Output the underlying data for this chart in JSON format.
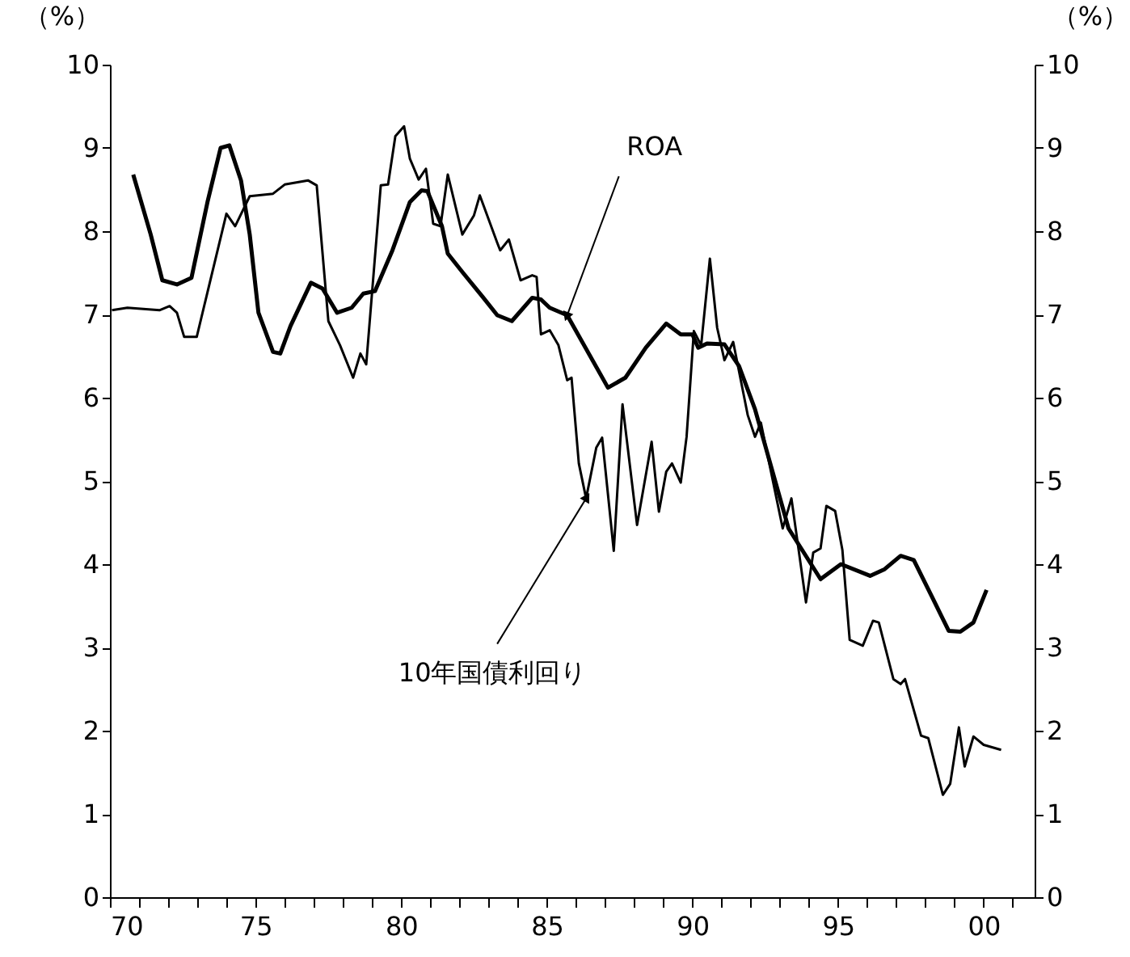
{
  "chart_data": {
    "type": "line",
    "xlim": [
      1970,
      2001.75
    ],
    "xticks": [
      {
        "value": 1970,
        "label": "70"
      },
      {
        "value": 1971,
        "label": null
      },
      {
        "value": 1972,
        "label": null
      },
      {
        "value": 1973,
        "label": null
      },
      {
        "value": 1974,
        "label": null
      },
      {
        "value": 1975,
        "label": "75"
      },
      {
        "value": 1976,
        "label": null
      },
      {
        "value": 1977,
        "label": null
      },
      {
        "value": 1978,
        "label": null
      },
      {
        "value": 1979,
        "label": null
      },
      {
        "value": 1980,
        "label": "80"
      },
      {
        "value": 1981,
        "label": null
      },
      {
        "value": 1982,
        "label": null
      },
      {
        "value": 1983,
        "label": null
      },
      {
        "value": 1984,
        "label": null
      },
      {
        "value": 1985,
        "label": "85"
      },
      {
        "value": 1986,
        "label": null
      },
      {
        "value": 1987,
        "label": null
      },
      {
        "value": 1988,
        "label": null
      },
      {
        "value": 1989,
        "label": null
      },
      {
        "value": 1990,
        "label": "90"
      },
      {
        "value": 1991,
        "label": null
      },
      {
        "value": 1992,
        "label": null
      },
      {
        "value": 1993,
        "label": null
      },
      {
        "value": 1994,
        "label": null
      },
      {
        "value": 1995,
        "label": "95"
      },
      {
        "value": 1996,
        "label": null
      },
      {
        "value": 1997,
        "label": null
      },
      {
        "value": 1998,
        "label": null
      },
      {
        "value": 1999,
        "label": null
      },
      {
        "value": 2000,
        "label": "00"
      },
      {
        "value": 2001,
        "label": null
      }
    ],
    "ylim": [
      0,
      10
    ],
    "yticks": [
      0,
      1,
      2,
      3,
      4,
      5,
      6,
      7,
      8,
      9,
      10
    ],
    "y2lim": [
      0,
      10
    ],
    "y2ticks": [
      0,
      1,
      2,
      3,
      4,
      5,
      6,
      7,
      8,
      9,
      10
    ],
    "ylabel": "（%）",
    "y2label": "（%）",
    "grid": false,
    "series": [
      {
        "color": "#000000",
        "x": [
          1970.8,
          1971.4,
          1971.8,
          1972.3,
          1972.8,
          1973.35,
          1973.8,
          1974.1,
          1974.5,
          1974.8,
          1975.1,
          1975.6,
          1975.85,
          1976.2,
          1976.9,
          1977.3,
          1977.8,
          1978.3,
          1978.7,
          1979.1,
          1979.7,
          1980.3,
          1980.7,
          1980.9,
          1981.4,
          1981.6,
          1982.1,
          1982.8,
          1983.3,
          1983.8,
          1984.5,
          1984.8,
          1985.1,
          1985.7,
          1987.1,
          1987.7,
          1988.4,
          1989.1,
          1989.6,
          1990.0,
          1990.2,
          1990.5,
          1991.1,
          1991.6,
          1992.15,
          1992.6,
          1993.3,
          1994.4,
          1995.1,
          1996.1,
          1996.6,
          1997.15,
          1997.6,
          1998.25,
          1998.8,
          1999.2,
          1999.65,
          2000.1
        ],
        "values": [
          8.68,
          7.96,
          7.41,
          7.36,
          7.44,
          8.35,
          9.0,
          9.03,
          8.61,
          7.96,
          7.02,
          6.55,
          6.53,
          6.86,
          7.38,
          7.31,
          7.02,
          7.08,
          7.25,
          7.28,
          7.77,
          8.35,
          8.49,
          8.48,
          8.06,
          7.73,
          7.51,
          7.21,
          6.99,
          6.92,
          7.2,
          7.18,
          7.08,
          6.99,
          6.12,
          6.24,
          6.6,
          6.89,
          6.76,
          6.76,
          6.6,
          6.65,
          6.64,
          6.38,
          5.86,
          5.3,
          4.43,
          3.82,
          4.0,
          3.86,
          3.94,
          4.1,
          4.05,
          3.59,
          3.2,
          3.19,
          3.3,
          3.69
        ]
      },
      {
        "color": "#000000",
        "x": [
          1970.07,
          1970.6,
          1971.7,
          1972.05,
          1972.3,
          1972.55,
          1972.98,
          1974.0,
          1974.3,
          1974.8,
          1975.6,
          1976.0,
          1976.8,
          1977.1,
          1977.5,
          1977.9,
          1978.35,
          1978.6,
          1978.8,
          1979.3,
          1979.55,
          1979.8,
          1980.1,
          1980.3,
          1980.6,
          1980.85,
          1981.1,
          1981.35,
          1981.6,
          1982.1,
          1982.5,
          1982.7,
          1983.3,
          1983.4,
          1983.7,
          1984.1,
          1984.5,
          1984.65,
          1984.8,
          1985.1,
          1985.4,
          1985.7,
          1985.85,
          1986.1,
          1986.35,
          1986.7,
          1986.9,
          1987.3,
          1987.6,
          1988.1,
          1988.6,
          1988.85,
          1989.1,
          1989.3,
          1989.6,
          1989.8,
          1990.05,
          1990.3,
          1990.6,
          1990.85,
          1991.1,
          1991.4,
          1991.9,
          1992.15,
          1992.35,
          1993.1,
          1993.4,
          1993.9,
          1994.15,
          1994.4,
          1994.6,
          1994.9,
          1995.15,
          1995.4,
          1995.85,
          1996.2,
          1996.4,
          1996.9,
          1997.15,
          1997.3,
          1997.85,
          1998.1,
          1998.6,
          1998.85,
          1999.15,
          1999.35,
          1999.65,
          2000.0,
          2000.6
        ],
        "values": [
          7.05,
          7.08,
          7.05,
          7.1,
          7.02,
          6.73,
          6.73,
          8.21,
          8.06,
          8.42,
          8.45,
          8.56,
          8.61,
          8.55,
          6.92,
          6.63,
          6.24,
          6.53,
          6.4,
          8.55,
          8.56,
          9.14,
          9.26,
          8.87,
          8.62,
          8.75,
          8.09,
          8.06,
          8.68,
          7.96,
          8.19,
          8.43,
          7.86,
          7.77,
          7.9,
          7.41,
          7.47,
          7.45,
          6.76,
          6.81,
          6.63,
          6.21,
          6.24,
          5.21,
          4.79,
          5.4,
          5.52,
          4.16,
          5.92,
          4.47,
          5.47,
          4.63,
          5.11,
          5.21,
          4.98,
          5.53,
          6.8,
          6.63,
          7.67,
          6.84,
          6.45,
          6.67,
          5.79,
          5.53,
          5.7,
          4.43,
          4.79,
          3.54,
          4.14,
          4.19,
          4.7,
          4.64,
          4.17,
          3.09,
          3.02,
          3.32,
          3.3,
          2.62,
          2.56,
          2.62,
          1.94,
          1.91,
          1.23,
          1.36,
          2.04,
          1.57,
          1.93,
          1.83,
          1.77
        ]
      }
    ],
    "annotations": [
      {
        "text": "ROA",
        "x": 1985.7,
        "y": 6.99
      },
      {
        "text": "10年国債利回り",
        "x": 1986.35,
        "y": 4.79
      }
    ]
  }
}
